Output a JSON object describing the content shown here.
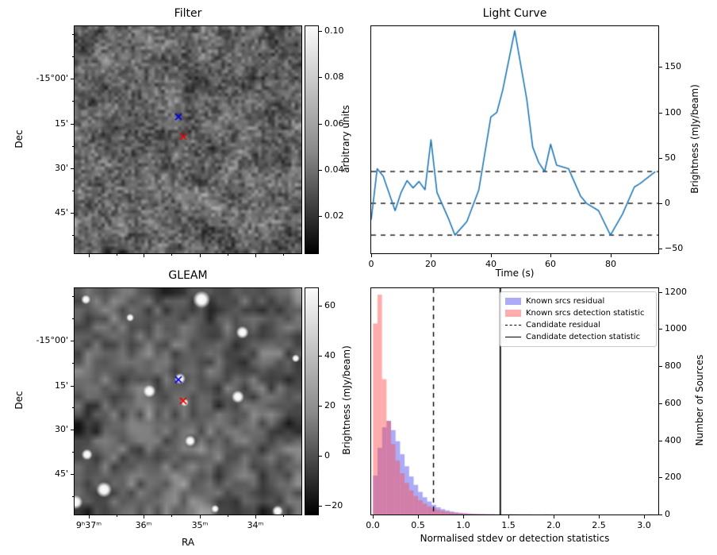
{
  "chart_data": [
    {
      "id": "filter",
      "type": "heatmap",
      "title": "Filter",
      "xlabel": "",
      "ylabel": "Dec",
      "xticks": [
        {
          "label": "",
          "f": 0.063
        },
        {
          "label": "",
          "f": 0.304
        },
        {
          "label": "",
          "f": 0.552
        },
        {
          "label": "",
          "f": 0.797
        }
      ],
      "xticks_minor": [
        0.185,
        0.426,
        0.675,
        0.919
      ],
      "yticks": [
        {
          "label": "-15°00'",
          "f": 0.23
        },
        {
          "label": "15'",
          "f": 0.43
        },
        {
          "label": "30'",
          "f": 0.625
        },
        {
          "label": "45'",
          "f": 0.822
        }
      ],
      "yticks_minor": [
        0.036,
        0.133,
        0.33,
        0.528,
        0.724,
        0.92
      ],
      "colorbar": {
        "label": "arbitrary units",
        "vmin": 0.004,
        "vmax": 0.102,
        "ticks": [
          {
            "label": "0.10",
            "v": 0.1
          },
          {
            "label": "0.08",
            "v": 0.08
          },
          {
            "label": "0.06",
            "v": 0.06
          },
          {
            "label": "0.04",
            "v": 0.04
          },
          {
            "label": "0.02",
            "v": 0.02
          }
        ]
      },
      "markers": [
        {
          "name": "candidate-marker",
          "color": "#0000ee",
          "fx": 0.458,
          "fy": 0.399
        },
        {
          "name": "known-source-marker",
          "color": "#ee0000",
          "fx": 0.479,
          "fy": 0.486
        }
      ]
    },
    {
      "id": "light_curve",
      "type": "line",
      "title": "Light Curve",
      "xlabel": "Time (s)",
      "ylabel": "Brightness (mJy/beam)",
      "xlim": [
        0,
        96
      ],
      "ylim": [
        -55,
        195
      ],
      "xticks": [
        {
          "label": "0",
          "v": 0
        },
        {
          "label": "20",
          "v": 20
        },
        {
          "label": "40",
          "v": 40
        },
        {
          "label": "60",
          "v": 60
        },
        {
          "label": "80",
          "v": 80
        }
      ],
      "yticks": [
        {
          "label": "−50",
          "v": -50
        },
        {
          "label": "0",
          "v": 0
        },
        {
          "label": "50",
          "v": 50
        },
        {
          "label": "100",
          "v": 100
        },
        {
          "label": "150",
          "v": 150
        }
      ],
      "x": [
        0,
        2,
        4,
        8,
        10,
        12,
        14,
        16,
        18,
        20,
        22,
        26,
        28,
        32,
        36,
        40,
        42,
        44,
        48,
        52,
        54,
        56,
        58,
        60,
        62,
        66,
        70,
        72,
        76,
        80,
        84,
        88,
        90,
        95
      ],
      "y": [
        -18,
        38,
        30,
        -8,
        12,
        25,
        17,
        24,
        15,
        70,
        12,
        -18,
        -35,
        -20,
        15,
        95,
        100,
        125,
        190,
        115,
        62,
        45,
        35,
        65,
        42,
        38,
        8,
        0,
        -8,
        -35,
        -12,
        18,
        22,
        35
      ],
      "hlines": [
        35,
        0,
        -35
      ],
      "line_color": "#1f77b4",
      "hline_color": "#000000"
    },
    {
      "id": "gleam",
      "type": "heatmap",
      "title": "GLEAM",
      "xlabel": "RA",
      "ylabel": "Dec",
      "xticks": [
        {
          "label": "9ʰ37ᵐ",
          "f": 0.063
        },
        {
          "label": "36ᵐ",
          "f": 0.304
        },
        {
          "label": "35ᵐ",
          "f": 0.552
        },
        {
          "label": "34ᵐ",
          "f": 0.797
        }
      ],
      "xticks_minor": [
        0.185,
        0.426,
        0.675,
        0.919
      ],
      "yticks": [
        {
          "label": "-15°00'",
          "f": 0.23
        },
        {
          "label": "15'",
          "f": 0.43
        },
        {
          "label": "30'",
          "f": 0.625
        },
        {
          "label": "45'",
          "f": 0.822
        }
      ],
      "yticks_minor": [
        0.036,
        0.133,
        0.33,
        0.528,
        0.724,
        0.92
      ],
      "colorbar": {
        "label": "Brightness (mJy/beam)",
        "vmin": -23.5,
        "vmax": 67,
        "ticks": [
          {
            "label": "60",
            "v": 60
          },
          {
            "label": "40",
            "v": 40
          },
          {
            "label": "20",
            "v": 20
          },
          {
            "label": "0",
            "v": 0
          },
          {
            "label": "−20",
            "v": -20
          }
        ]
      },
      "sources": [
        {
          "fx": 0.56,
          "fy": 0.05,
          "r": 11
        },
        {
          "fx": 0.05,
          "fy": 0.05,
          "r": 6
        },
        {
          "fx": 0.74,
          "fy": 0.195,
          "r": 8
        },
        {
          "fx": 0.245,
          "fy": 0.13,
          "r": 5
        },
        {
          "fx": 0.33,
          "fy": 0.455,
          "r": 8
        },
        {
          "fx": 0.465,
          "fy": 0.4,
          "r": 7
        },
        {
          "fx": 0.72,
          "fy": 0.48,
          "r": 8
        },
        {
          "fx": 0.485,
          "fy": 0.505,
          "r": 5
        },
        {
          "fx": 0.51,
          "fy": 0.675,
          "r": 7
        },
        {
          "fx": 0.055,
          "fy": 0.735,
          "r": 7
        },
        {
          "fx": 0.13,
          "fy": 0.89,
          "r": 10
        },
        {
          "fx": 0.005,
          "fy": 0.945,
          "r": 9
        },
        {
          "fx": 0.62,
          "fy": 0.975,
          "r": 5
        },
        {
          "fx": 0.895,
          "fy": 0.985,
          "r": 7
        },
        {
          "fx": 0.975,
          "fy": 0.31,
          "r": 5
        }
      ],
      "markers": [
        {
          "name": "candidate-marker",
          "color": "#0000ee",
          "fx": 0.458,
          "fy": 0.404
        },
        {
          "name": "known-source-marker",
          "color": "#ee0000",
          "fx": 0.479,
          "fy": 0.498
        }
      ]
    },
    {
      "id": "histogram",
      "type": "bar",
      "title": "",
      "xlabel": "Normalised stdev or detection statistics",
      "ylabel": "Number of Sources",
      "xlim": [
        -0.02,
        3.16
      ],
      "ylim": [
        0,
        1220
      ],
      "xticks": [
        {
          "label": "0.0",
          "v": 0
        },
        {
          "label": "0.5",
          "v": 0.5
        },
        {
          "label": "1.0",
          "v": 1.0
        },
        {
          "label": "1.5",
          "v": 1.5
        },
        {
          "label": "2.0",
          "v": 2.0
        },
        {
          "label": "2.5",
          "v": 2.5
        },
        {
          "label": "3.0",
          "v": 3.0
        }
      ],
      "yticks": [
        {
          "label": "0",
          "v": 0
        },
        {
          "label": "200",
          "v": 200
        },
        {
          "label": "400",
          "v": 400
        },
        {
          "label": "600",
          "v": 600
        },
        {
          "label": "800",
          "v": 800
        },
        {
          "label": "1000",
          "v": 1000
        },
        {
          "label": "1200",
          "v": 1200
        }
      ],
      "bin_width": 0.05,
      "bin_start": 0,
      "series": [
        {
          "name": "Known srcs residual",
          "color": "rgba(55,55,235,0.42)",
          "values": [
            210,
            360,
            470,
            505,
            455,
            395,
            325,
            260,
            205,
            160,
            122,
            93,
            70,
            52,
            39,
            29,
            22,
            16,
            12,
            9,
            7,
            5,
            4,
            3,
            3,
            2,
            2,
            1,
            1,
            1,
            1,
            1,
            1,
            0,
            1,
            0,
            0,
            0,
            0,
            0,
            0,
            0,
            0,
            0,
            0,
            0,
            0,
            0,
            0,
            0,
            0,
            0,
            0,
            0,
            0,
            0,
            0,
            0,
            0,
            0,
            0,
            0,
            0,
            0
          ]
        },
        {
          "name": "Known srcs detection statistic",
          "color": "rgba(255,70,70,0.45)",
          "values": [
            1030,
            1185,
            730,
            505,
            380,
            290,
            222,
            170,
            130,
            100,
            77,
            58,
            44,
            33,
            25,
            19,
            14,
            11,
            8,
            6,
            5,
            4,
            3,
            3,
            2,
            2,
            2,
            1,
            1,
            1,
            2,
            1,
            0,
            1,
            0,
            0,
            0,
            0,
            1,
            0,
            0,
            0,
            0,
            0,
            0,
            0,
            0,
            0,
            0,
            0,
            0,
            0,
            0,
            0,
            0,
            0,
            0,
            0,
            0,
            0,
            0,
            2,
            1,
            0
          ]
        }
      ],
      "vlines": [
        {
          "name": "Candidate residual",
          "x": 0.67,
          "style": "dashed"
        },
        {
          "name": "Candidate detection statistic",
          "x": 1.41,
          "style": "solid"
        }
      ],
      "legend": [
        {
          "label": "Known srcs residual",
          "swatch": "patch",
          "color": "rgba(55,55,235,0.42)"
        },
        {
          "label": "Known srcs detection statistic",
          "swatch": "patch",
          "color": "rgba(255,70,70,0.45)"
        },
        {
          "label": "Candidate residual",
          "swatch": "dashed"
        },
        {
          "label": "Candidate detection statistic",
          "swatch": "solid"
        }
      ],
      "legend_position": "upper right"
    }
  ]
}
